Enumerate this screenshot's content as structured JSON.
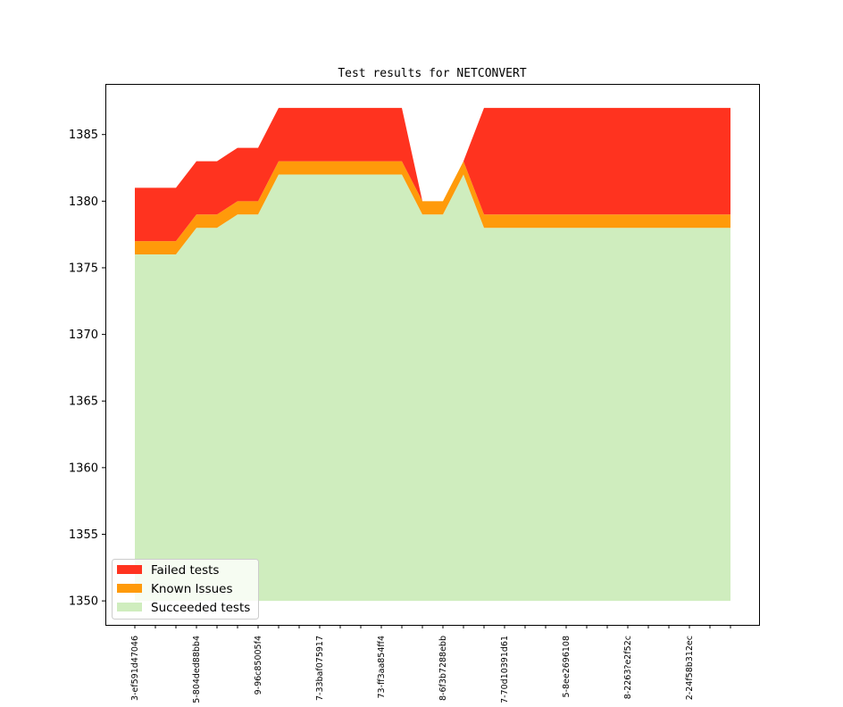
{
  "chart_data": {
    "type": "area",
    "title": "Test results for NETCONVERT",
    "xlabel": "",
    "ylabel": "",
    "ylim": [
      1348.2,
      1388.8
    ],
    "yticks": [
      1350,
      1355,
      1360,
      1365,
      1370,
      1375,
      1380,
      1385
    ],
    "baseline": 1350,
    "grid": false,
    "legend_position": "lower-left",
    "x_count": 30,
    "x_tick_labels": [
      {
        "index": 0,
        "label": "3-ef591d47046"
      },
      {
        "index": 3,
        "label": "5-804ded88bb4"
      },
      {
        "index": 6,
        "label": "9-96c85005f4"
      },
      {
        "index": 9,
        "label": "7-33baf075917"
      },
      {
        "index": 12,
        "label": "73-ff3aa854ff4"
      },
      {
        "index": 15,
        "label": "8-6f3b7288ebb"
      },
      {
        "index": 18,
        "label": "7-70d10391d61"
      },
      {
        "index": 21,
        "label": "5-8ee2696108"
      },
      {
        "index": 24,
        "label": "8-2263?e2f52c"
      },
      {
        "index": 27,
        "label": "2-24f58b312ec"
      }
    ],
    "series": [
      {
        "name": "Succeeded tests",
        "color": "#cfedbe",
        "values": [
          1376,
          1376,
          1376,
          1378,
          1378,
          1379,
          1379,
          1382,
          1382,
          1382,
          1382,
          1382,
          1382,
          1382,
          1379,
          1379,
          1382,
          1378,
          1378,
          1378,
          1378,
          1378,
          1378,
          1378,
          1378,
          1378,
          1378,
          1378,
          1378,
          1378
        ]
      },
      {
        "name": "Known Issues",
        "color": "#ff9a0a",
        "values": [
          1,
          1,
          1,
          1,
          1,
          1,
          1,
          1,
          1,
          1,
          1,
          1,
          1,
          1,
          1,
          1,
          1,
          1,
          1,
          1,
          1,
          1,
          1,
          1,
          1,
          1,
          1,
          1,
          1,
          1
        ]
      },
      {
        "name": "Failed tests",
        "color": "#ff331f",
        "values": [
          4,
          4,
          4,
          4,
          4,
          4,
          4,
          4,
          4,
          4,
          4,
          4,
          4,
          4,
          0,
          0,
          0,
          8,
          8,
          8,
          8,
          8,
          8,
          8,
          8,
          8,
          8,
          8,
          8,
          8
        ]
      }
    ],
    "legend": [
      "Failed tests",
      "Known Issues",
      "Succeeded tests"
    ]
  }
}
